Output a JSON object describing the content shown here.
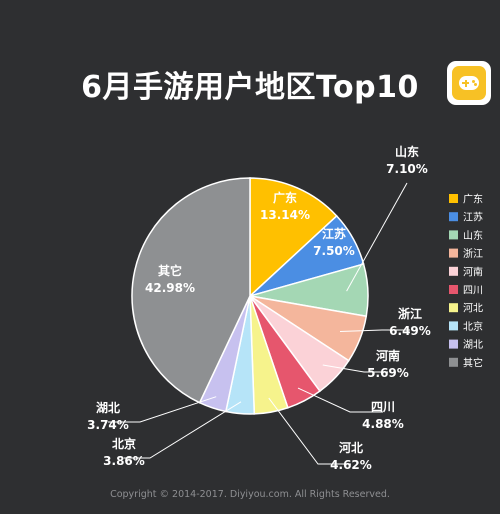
{
  "page": {
    "title": "6月手游用户地区Top10",
    "copyright": "Copyright © 2014-2017. Diyiyou.com. All Rights Reserved."
  },
  "logo": {
    "icon": "gamepad-icon",
    "bg_color": "#f7c125"
  },
  "chart_data": {
    "type": "pie",
    "title": "6月手游用户地区Top10",
    "unit": "%",
    "legend_position": "right",
    "slices": [
      {
        "name": "广东",
        "value": 13.14,
        "label": "13.14%",
        "color": "#ffc000"
      },
      {
        "name": "江苏",
        "value": 7.5,
        "label": "7.50%",
        "color": "#4b8ee3"
      },
      {
        "name": "山东",
        "value": 7.1,
        "label": "7.10%",
        "color": "#a4d7b4"
      },
      {
        "name": "浙江",
        "value": 6.49,
        "label": "6.49%",
        "color": "#f4b69c"
      },
      {
        "name": "河南",
        "value": 5.69,
        "label": "5.69%",
        "color": "#fbd2d7"
      },
      {
        "name": "四川",
        "value": 4.88,
        "label": "4.88%",
        "color": "#e6566d"
      },
      {
        "name": "河北",
        "value": 4.62,
        "label": "4.62%",
        "color": "#f6f38c"
      },
      {
        "name": "北京",
        "value": 3.86,
        "label": "3.86%",
        "color": "#b6e4f8"
      },
      {
        "name": "湖北",
        "value": 3.74,
        "label": "3.74%",
        "color": "#c7c1ef"
      },
      {
        "name": "其它",
        "value": 42.98,
        "label": "42.98%",
        "color": "#8e9092"
      }
    ]
  }
}
